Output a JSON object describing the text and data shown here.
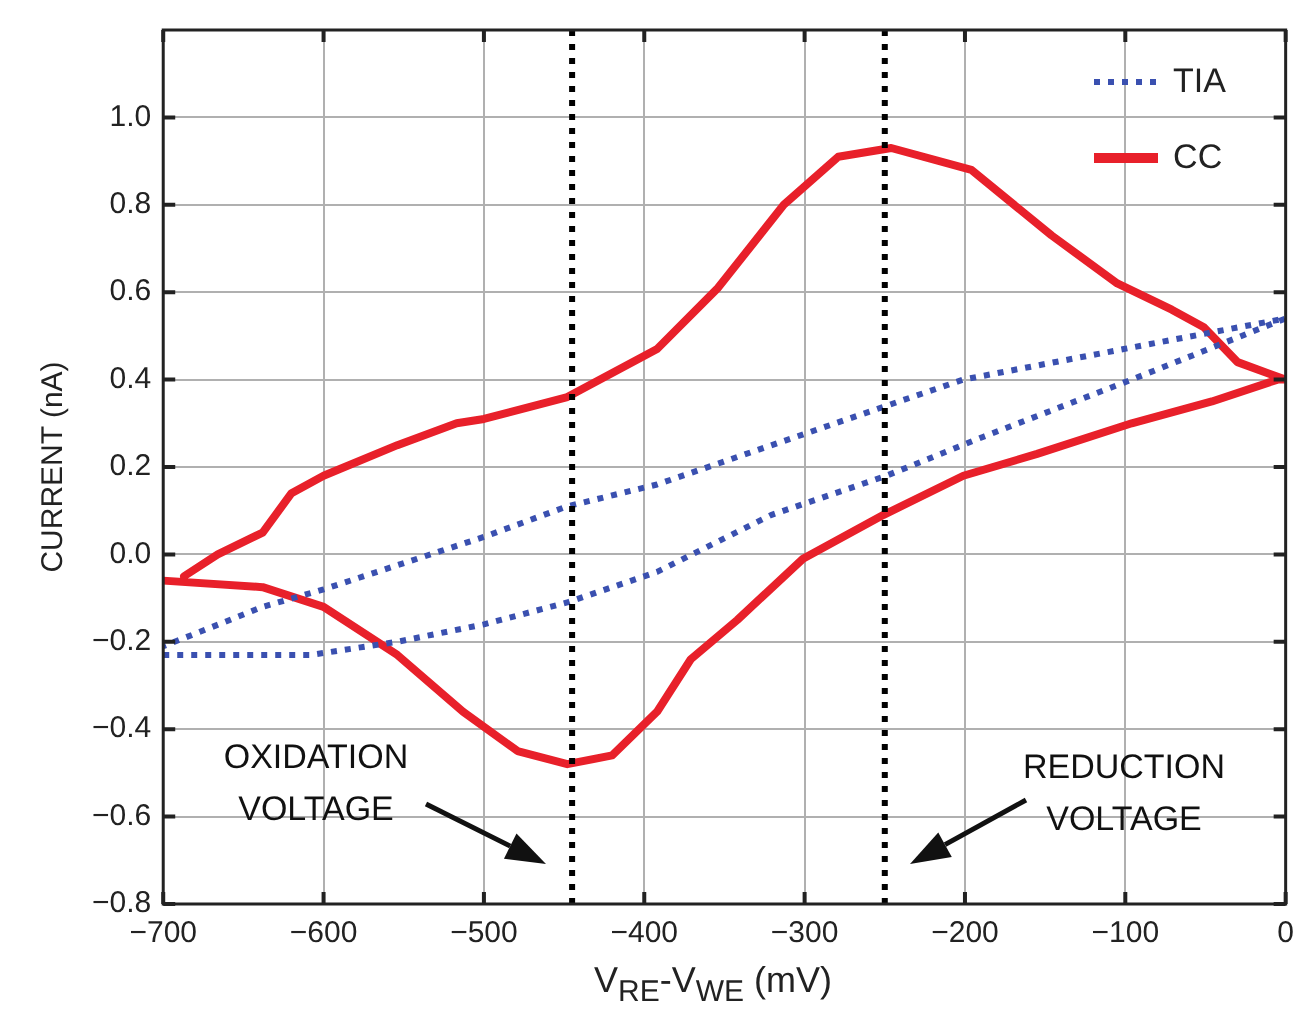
{
  "chart_data": {
    "type": "line",
    "xlabel": "V$_{RE}$-V$_{WE}$ (mV)",
    "ylabel": "CURRENT (nA)",
    "xlim": [
      -700,
      0
    ],
    "xticks": [
      -700,
      -600,
      -500,
      -400,
      -300,
      -200,
      -100,
      0
    ],
    "ylim": [
      -0.8,
      1.2
    ],
    "yticks": [
      -0.8,
      -0.6,
      -0.4,
      -0.2,
      {
        "value": 0,
        "label": "0.0"
      },
      0.2,
      0.4,
      0.6,
      0.8,
      {
        "value": 1,
        "label": "1.0"
      }
    ],
    "grid": true,
    "legend": "top right",
    "marker": "none",
    "series": [
      {
        "name": "TIA",
        "color": "#3a50b0",
        "line_style": "dotted",
        "x": [
          -700,
          -608,
          -554,
          -500,
          -448,
          -392,
          -321,
          -249,
          -188,
          -96,
          0,
          -101,
          -201,
          -249,
          -392,
          -448,
          -500,
          -600,
          -638,
          -679,
          -700
        ],
        "values": [
          -0.23,
          -0.23,
          -0.2,
          -0.16,
          -0.11,
          -0.04,
          0.09,
          0.18,
          0.27,
          0.4,
          0.54,
          0.47,
          0.4,
          0.34,
          0.16,
          0.11,
          0.04,
          -0.08,
          -0.12,
          -0.18,
          -0.21
        ]
      },
      {
        "name": "CC",
        "color": "#e8202a",
        "line_style": "solid",
        "x": [
          -700,
          -638,
          -600,
          -554,
          -513,
          -479,
          -448,
          -420,
          -392,
          -371,
          -342,
          -301,
          -251,
          -201,
          -155,
          -96,
          -46,
          -5,
          0,
          -30,
          -51,
          -71,
          -105,
          -146,
          -196,
          -246,
          -279,
          -313,
          -354,
          -392,
          -448,
          -500,
          -517,
          -554,
          -600,
          -620,
          -638,
          -666,
          -687
        ],
        "values": [
          -0.06,
          -0.075,
          -0.12,
          -0.23,
          -0.36,
          -0.45,
          -0.48,
          -0.46,
          -0.36,
          -0.24,
          -0.15,
          -0.01,
          0.09,
          0.18,
          0.23,
          0.3,
          0.35,
          0.4,
          0.4,
          0.44,
          0.52,
          0.56,
          0.62,
          0.73,
          0.88,
          0.93,
          0.91,
          0.8,
          0.61,
          0.47,
          0.36,
          0.31,
          0.3,
          0.25,
          0.18,
          0.14,
          0.05,
          0.0,
          -0.05
        ]
      }
    ],
    "ref_lines": [
      {
        "axis": "x",
        "value": -445,
        "color": "#000000",
        "line_style": "dotted"
      },
      {
        "axis": "x",
        "value": -250,
        "color": "#000000",
        "line_style": "dotted"
      }
    ],
    "annotations": [
      "OXIDATION VOLTAGE",
      "REDUCTION VOLTAGE"
    ]
  }
}
